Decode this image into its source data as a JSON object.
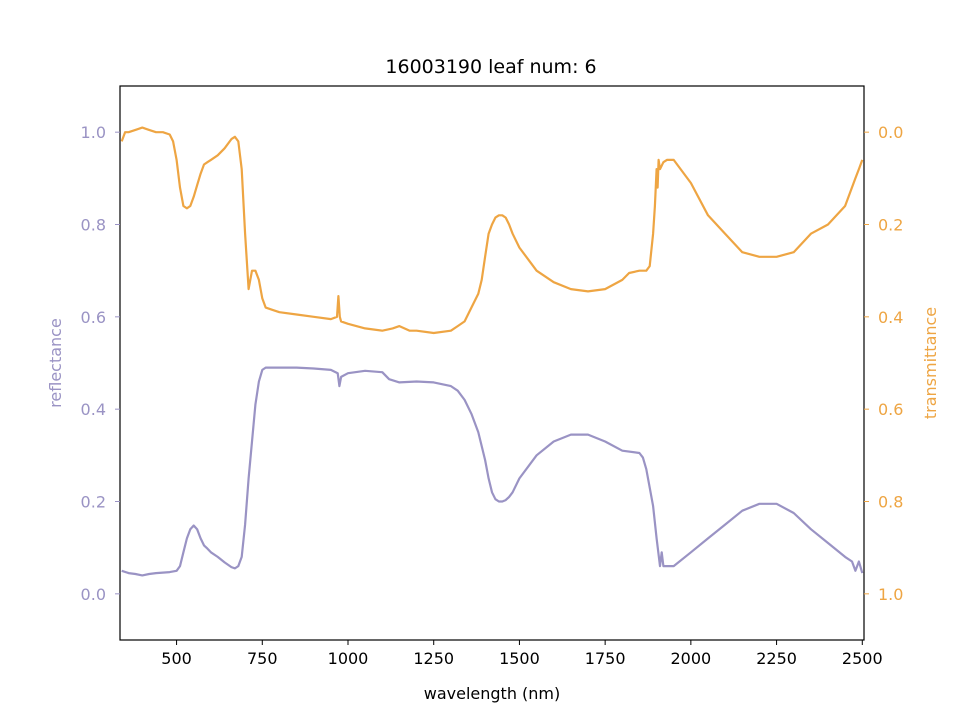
{
  "chart_data": {
    "type": "line",
    "title": "16003190 leaf num: 6",
    "xlabel": "wavelength (nm)",
    "ylabel": "reflectance",
    "y2label": "transmittance",
    "xlim": [
      335,
      2505
    ],
    "ylim": [
      -0.1,
      1.1
    ],
    "y2lim": [
      1.1,
      -0.1
    ],
    "y2_inverted": true,
    "x_ticks": [
      500,
      750,
      1000,
      1250,
      1500,
      1750,
      2000,
      2250,
      2500
    ],
    "y_ticks": [
      0.0,
      0.2,
      0.4,
      0.6,
      0.8,
      1.0
    ],
    "y2_ticks": [
      0.0,
      0.2,
      0.4,
      0.6,
      0.8,
      1.0
    ],
    "grid": false,
    "legend": "none",
    "colors": {
      "reflectance": "#9a93c4",
      "transmittance": "#eea543",
      "axes": "#000000"
    },
    "series": [
      {
        "key": "reflectance",
        "axis": "left",
        "x": [
          340,
          360,
          380,
          400,
          420,
          440,
          460,
          480,
          500,
          510,
          520,
          530,
          540,
          550,
          560,
          570,
          580,
          590,
          600,
          620,
          640,
          660,
          670,
          680,
          690,
          700,
          710,
          720,
          730,
          740,
          750,
          760,
          800,
          850,
          900,
          950,
          970,
          975,
          980,
          1000,
          1050,
          1100,
          1120,
          1150,
          1200,
          1250,
          1300,
          1320,
          1340,
          1360,
          1380,
          1400,
          1410,
          1420,
          1430,
          1440,
          1450,
          1460,
          1470,
          1480,
          1500,
          1550,
          1600,
          1650,
          1700,
          1750,
          1800,
          1850,
          1860,
          1870,
          1880,
          1890,
          1900,
          1905,
          1910,
          1915,
          1920,
          1950,
          2000,
          2050,
          2100,
          2150,
          2200,
          2250,
          2300,
          2350,
          2400,
          2450,
          2470,
          2480,
          2490,
          2500
        ],
        "y": [
          0.05,
          0.045,
          0.043,
          0.04,
          0.043,
          0.045,
          0.046,
          0.047,
          0.05,
          0.06,
          0.09,
          0.12,
          0.14,
          0.148,
          0.14,
          0.12,
          0.105,
          0.098,
          0.09,
          0.08,
          0.068,
          0.058,
          0.055,
          0.06,
          0.08,
          0.15,
          0.25,
          0.33,
          0.41,
          0.46,
          0.485,
          0.49,
          0.49,
          0.49,
          0.488,
          0.485,
          0.478,
          0.45,
          0.47,
          0.478,
          0.483,
          0.48,
          0.465,
          0.458,
          0.46,
          0.458,
          0.45,
          0.44,
          0.42,
          0.39,
          0.35,
          0.29,
          0.25,
          0.22,
          0.205,
          0.2,
          0.2,
          0.203,
          0.21,
          0.22,
          0.25,
          0.3,
          0.33,
          0.345,
          0.345,
          0.33,
          0.31,
          0.305,
          0.295,
          0.27,
          0.23,
          0.19,
          0.12,
          0.09,
          0.06,
          0.09,
          0.06,
          0.06,
          0.09,
          0.12,
          0.15,
          0.18,
          0.195,
          0.195,
          0.175,
          0.14,
          0.11,
          0.08,
          0.07,
          0.05,
          0.07,
          0.045
        ]
      },
      {
        "key": "transmittance",
        "axis": "right",
        "x": [
          340,
          350,
          360,
          380,
          400,
          420,
          440,
          460,
          480,
          490,
          500,
          510,
          520,
          530,
          540,
          550,
          560,
          570,
          580,
          590,
          600,
          620,
          640,
          660,
          670,
          680,
          690,
          700,
          710,
          720,
          730,
          740,
          750,
          760,
          780,
          800,
          850,
          900,
          950,
          968,
          972,
          976,
          980,
          1000,
          1050,
          1100,
          1130,
          1150,
          1180,
          1200,
          1250,
          1300,
          1320,
          1340,
          1360,
          1380,
          1390,
          1400,
          1410,
          1420,
          1430,
          1440,
          1450,
          1460,
          1470,
          1480,
          1500,
          1550,
          1600,
          1650,
          1700,
          1750,
          1800,
          1820,
          1850,
          1870,
          1880,
          1890,
          1895,
          1900,
          1903,
          1906,
          1910,
          1920,
          1930,
          1950,
          2000,
          2050,
          2100,
          2150,
          2200,
          2250,
          2300,
          2350,
          2400,
          2450,
          2480,
          2490,
          2500
        ],
        "y": [
          0.02,
          0.0,
          0.0,
          -0.005,
          -0.01,
          -0.005,
          0.0,
          0.0,
          0.005,
          0.02,
          0.06,
          0.12,
          0.16,
          0.165,
          0.16,
          0.14,
          0.115,
          0.09,
          0.07,
          0.065,
          0.06,
          0.05,
          0.035,
          0.015,
          0.01,
          0.02,
          0.08,
          0.22,
          0.34,
          0.3,
          0.3,
          0.32,
          0.36,
          0.38,
          0.385,
          0.39,
          0.395,
          0.4,
          0.405,
          0.4,
          0.355,
          0.4,
          0.41,
          0.415,
          0.425,
          0.43,
          0.425,
          0.42,
          0.43,
          0.43,
          0.435,
          0.43,
          0.42,
          0.41,
          0.38,
          0.35,
          0.32,
          0.27,
          0.22,
          0.2,
          0.185,
          0.18,
          0.18,
          0.185,
          0.2,
          0.22,
          0.25,
          0.3,
          0.325,
          0.34,
          0.345,
          0.34,
          0.32,
          0.305,
          0.3,
          0.3,
          0.29,
          0.22,
          0.16,
          0.08,
          0.12,
          0.06,
          0.08,
          0.065,
          0.06,
          0.06,
          0.11,
          0.18,
          0.22,
          0.26,
          0.27,
          0.27,
          0.26,
          0.22,
          0.2,
          0.16,
          0.1,
          0.08,
          0.06
        ]
      }
    ]
  }
}
